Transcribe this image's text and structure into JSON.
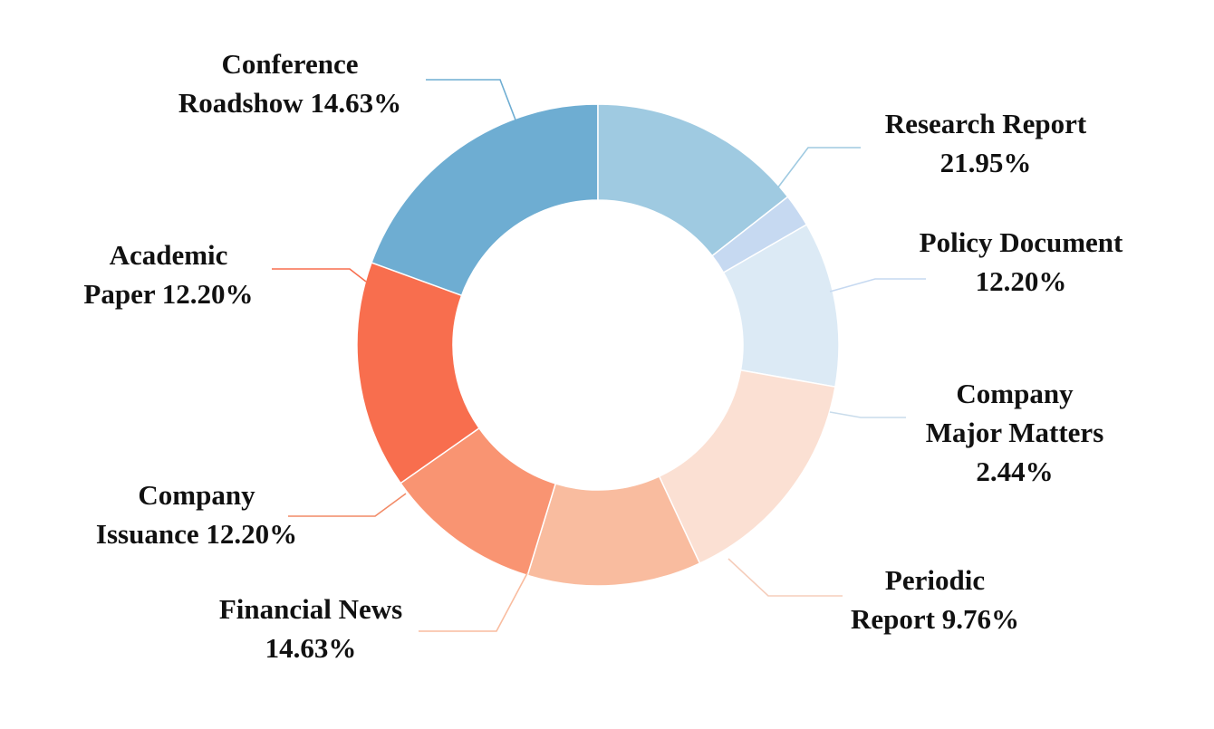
{
  "chart_data": {
    "type": "pie",
    "variant": "donut",
    "title": "",
    "start": "Conference Roadshow at top, clockwise",
    "slices": [
      {
        "name": "Conference Roadshow",
        "value": 14.63,
        "label_lines": [
          "Conference",
          "Roadshow 14.63%"
        ],
        "color": "#6EADD2"
      },
      {
        "name": "Research Report",
        "value": 21.95,
        "label_lines": [
          "Research Report",
          "21.95%"
        ],
        "color": "#9FCAE1"
      },
      {
        "name": "Policy Document",
        "value": 12.2,
        "label_lines": [
          "Policy Document",
          "12.20%"
        ],
        "color": "#C6D9F1"
      },
      {
        "name": "Company Major Matters",
        "value": 2.44,
        "label_lines": [
          "Company",
          "Major Matters",
          "2.44%"
        ],
        "color": "#DCEAF5"
      },
      {
        "name": "Periodic Report",
        "value": 9.76,
        "label_lines": [
          "Periodic",
          "Report 9.76%"
        ],
        "color": "#FBE0D3"
      },
      {
        "name": "Financial News",
        "value": 14.63,
        "label_lines": [
          "Financial News",
          "14.63%"
        ],
        "color": "#F9BC9F"
      },
      {
        "name": "Company Issuance",
        "value": 12.2,
        "label_lines": [
          "Company",
          "Issuance 12.20%"
        ],
        "color": "#F99472"
      },
      {
        "name": "Academic Paper",
        "value": 12.2,
        "label_lines": [
          "Academic",
          "Paper 12.20%"
        ],
        "color": "#F86E4E"
      }
    ]
  }
}
